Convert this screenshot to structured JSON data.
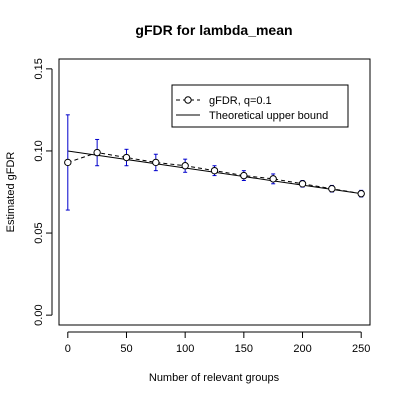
{
  "chart_data": {
    "type": "line",
    "title": "gFDR for lambda_mean",
    "xlabel": "Number of relevant groups",
    "ylabel": "Estimated gFDR",
    "xlim": [
      -7.5,
      257.5
    ],
    "ylim": [
      -0.006,
      0.156
    ],
    "x_ticks": [
      0,
      50,
      100,
      150,
      200,
      250
    ],
    "y_ticks": [
      0.0,
      0.05,
      0.1,
      0.15
    ],
    "x_tick_labels": [
      "0",
      "50",
      "100",
      "150",
      "200",
      "250"
    ],
    "y_tick_labels": [
      "0.00",
      "0.05",
      "0.10",
      "0.15"
    ],
    "grid": false,
    "legend_position": "top-right",
    "colors": {
      "errorbar": "#0000cc",
      "line": "#000000"
    },
    "series": [
      {
        "name": "gFDR, q=0.1",
        "style": "dashed-with-circles",
        "x": [
          0,
          25,
          50,
          75,
          100,
          125,
          150,
          175,
          200,
          225,
          250
        ],
        "y": [
          0.093,
          0.099,
          0.096,
          0.093,
          0.091,
          0.088,
          0.085,
          0.083,
          0.08,
          0.077,
          0.074
        ],
        "err_low": [
          0.064,
          0.091,
          0.091,
          0.088,
          0.087,
          0.085,
          0.082,
          0.08,
          0.078,
          0.075,
          0.072
        ],
        "err_high": [
          0.122,
          0.107,
          0.101,
          0.098,
          0.095,
          0.091,
          0.088,
          0.086,
          0.082,
          0.079,
          0.076
        ]
      },
      {
        "name": "Theoretical upper bound",
        "style": "solid",
        "x": [
          0,
          25,
          50,
          75,
          100,
          125,
          150,
          175,
          200,
          225,
          250
        ],
        "y": [
          0.1,
          0.0974,
          0.0948,
          0.0922,
          0.0896,
          0.087,
          0.0844,
          0.0818,
          0.0792,
          0.0766,
          0.074
        ]
      }
    ]
  }
}
